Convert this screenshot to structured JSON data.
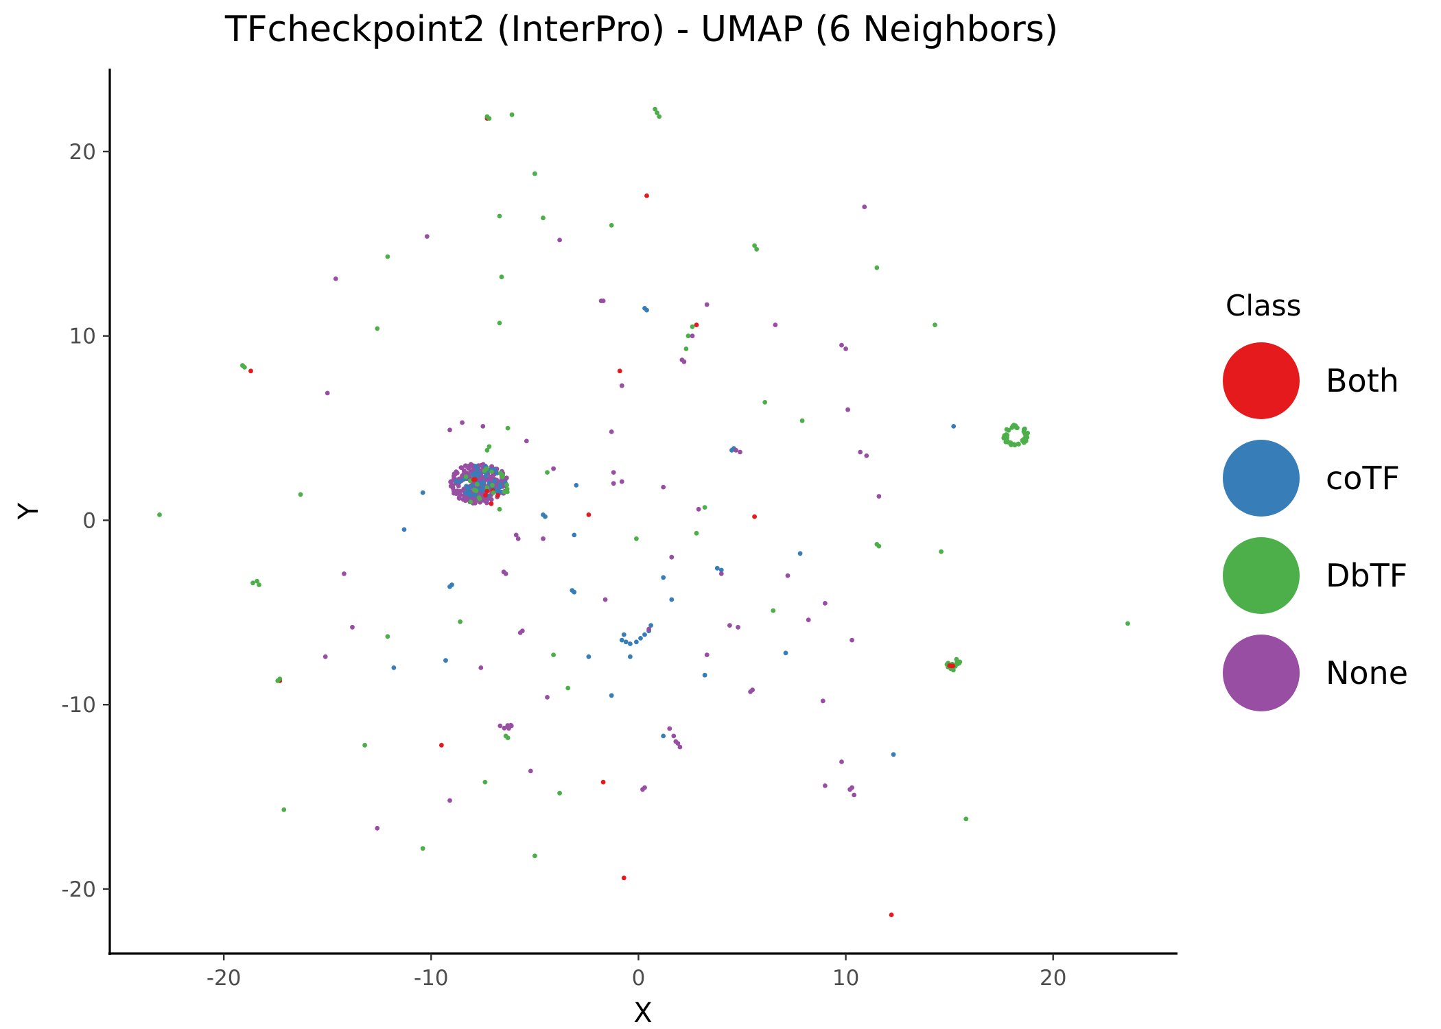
{
  "chart_data": {
    "type": "scatter",
    "title": "TFcheckpoint2 (InterPro) - UMAP (6 Neighbors)",
    "xlabel": "X",
    "ylabel": "Y",
    "xlim": [
      -25.5,
      26
    ],
    "ylim": [
      -23.5,
      24.5
    ],
    "xticks": [
      -20,
      -10,
      0,
      10,
      20
    ],
    "yticks": [
      -20,
      -10,
      0,
      10,
      20
    ],
    "grid": false,
    "legend": {
      "title": "Class",
      "placement": "right",
      "entries": [
        "Both",
        "coTF",
        "DbTF",
        "None"
      ]
    },
    "colors": {
      "Both": "#E41A1C",
      "coTF": "#377EB8",
      "DbTF": "#4DAF4A",
      "None": "#984EA3"
    },
    "clusters": [
      {
        "series": "None",
        "cx": -7.7,
        "cy": 2.0,
        "rx": 1.4,
        "ry": 1.1,
        "n": 260,
        "shape": "disc"
      },
      {
        "series": "coTF",
        "cx": -7.6,
        "cy": 2.1,
        "rx": 1.2,
        "ry": 0.9,
        "n": 45,
        "shape": "disc"
      },
      {
        "series": "DbTF",
        "cx": -7.3,
        "cy": 2.0,
        "rx": 1.2,
        "ry": 0.9,
        "n": 20,
        "shape": "disc"
      },
      {
        "series": "Both",
        "cx": -7.5,
        "cy": 1.8,
        "rx": 1.1,
        "ry": 0.8,
        "n": 6,
        "shape": "disc"
      },
      {
        "series": "DbTF",
        "cx": 18.2,
        "cy": 4.6,
        "rx": 0.55,
        "ry": 0.55,
        "n": 40,
        "shape": "ring"
      },
      {
        "series": "DbTF",
        "cx": 15.2,
        "cy": -7.8,
        "rx": 0.35,
        "ry": 0.35,
        "n": 18,
        "shape": "disc"
      },
      {
        "series": "Both",
        "cx": 15.1,
        "cy": -7.9,
        "rx": 0.2,
        "ry": 0.2,
        "n": 3,
        "shape": "disc"
      },
      {
        "series": "None",
        "cx": -6.4,
        "cy": -11.2,
        "rx": 0.35,
        "ry": 0.15,
        "n": 8,
        "shape": "disc"
      }
    ],
    "series": [
      {
        "name": "Both",
        "points": [
          [
            -7.3,
            21.8
          ],
          [
            0.4,
            17.6
          ],
          [
            -18.7,
            8.1
          ],
          [
            2.8,
            10.6
          ],
          [
            -0.9,
            8.1
          ],
          [
            -2.4,
            0.3
          ],
          [
            5.6,
            0.2
          ],
          [
            -9.5,
            -12.2
          ],
          [
            -1.7,
            -14.2
          ],
          [
            -0.7,
            -19.4
          ],
          [
            12.2,
            -21.4
          ],
          [
            -17.3,
            -8.7
          ],
          [
            -7.1,
            0.9
          ]
        ]
      },
      {
        "name": "coTF",
        "points": [
          [
            0.3,
            11.5
          ],
          [
            0.4,
            11.4
          ],
          [
            4.6,
            3.9
          ],
          [
            4.5,
            3.8
          ],
          [
            15.2,
            5.1
          ],
          [
            -10.4,
            1.5
          ],
          [
            -11.3,
            -0.5
          ],
          [
            -3,
            1.9
          ],
          [
            -4.6,
            0.3
          ],
          [
            -4.5,
            0.2
          ],
          [
            -3.1,
            -0.8
          ],
          [
            3.8,
            -2.6
          ],
          [
            4,
            -2.7
          ],
          [
            -3.2,
            -3.8
          ],
          [
            -3.1,
            -3.9
          ],
          [
            7.8,
            -1.8
          ],
          [
            1.2,
            -3.1
          ],
          [
            1.6,
            -4.3
          ],
          [
            -9,
            -3.5
          ],
          [
            -9.1,
            -3.6
          ],
          [
            0.6,
            -5.7
          ],
          [
            0.5,
            -6
          ],
          [
            0.3,
            -6.2
          ],
          [
            0.1,
            -6.4
          ],
          [
            -0.1,
            -6.6
          ],
          [
            -0.4,
            -6.7
          ],
          [
            -0.6,
            -6.6
          ],
          [
            -0.8,
            -6.5
          ],
          [
            -0.7,
            -6.2
          ],
          [
            -0.4,
            -7.4
          ],
          [
            -2.4,
            -7.4
          ],
          [
            -9.3,
            -7.6
          ],
          [
            -11.8,
            -8
          ],
          [
            7.1,
            -7.2
          ],
          [
            3.2,
            -8.4
          ],
          [
            -1.3,
            -9.5
          ],
          [
            1.2,
            -11.7
          ],
          [
            12.3,
            -12.7
          ]
        ]
      },
      {
        "name": "DbTF",
        "points": [
          [
            -7.3,
            21.9
          ],
          [
            -7.2,
            21.8
          ],
          [
            -6.1,
            22
          ],
          [
            0.8,
            22.3
          ],
          [
            0.9,
            22.1
          ],
          [
            1,
            21.9
          ],
          [
            -5,
            18.8
          ],
          [
            -4.6,
            16.4
          ],
          [
            -6.7,
            16.5
          ],
          [
            -1.3,
            16
          ],
          [
            5.6,
            14.9
          ],
          [
            5.7,
            14.7
          ],
          [
            -12.1,
            14.3
          ],
          [
            -6.6,
            13.2
          ],
          [
            11.5,
            13.7
          ],
          [
            -12.6,
            10.4
          ],
          [
            -6.7,
            10.7
          ],
          [
            14.3,
            10.6
          ],
          [
            2.6,
            10.5
          ],
          [
            2.3,
            9.3
          ],
          [
            2.4,
            10
          ],
          [
            -19.1,
            8.4
          ],
          [
            -19,
            8.3
          ],
          [
            6.1,
            6.4
          ],
          [
            7.9,
            5.4
          ],
          [
            -6.3,
            5
          ],
          [
            -7.2,
            4
          ],
          [
            -7.3,
            3.8
          ],
          [
            -16.3,
            1.4
          ],
          [
            -23.1,
            0.3
          ],
          [
            -4.4,
            2.6
          ],
          [
            3.2,
            0.7
          ],
          [
            -6.7,
            0.6
          ],
          [
            -0.1,
            -1
          ],
          [
            2.8,
            -0.7
          ],
          [
            11.5,
            -1.3
          ],
          [
            11.6,
            -1.4
          ],
          [
            14.6,
            -1.7
          ],
          [
            -18.4,
            -3.3
          ],
          [
            -18.6,
            -3.4
          ],
          [
            -18.3,
            -3.5
          ],
          [
            -8.6,
            -5.5
          ],
          [
            -17.3,
            -8.6
          ],
          [
            -17.4,
            -8.7
          ],
          [
            -12.1,
            -6.3
          ],
          [
            -4.1,
            -7.3
          ],
          [
            -3.4,
            -9.1
          ],
          [
            6.5,
            -4.9
          ],
          [
            -6.4,
            -11.7
          ],
          [
            -6.3,
            -11.8
          ],
          [
            -13.2,
            -12.2
          ],
          [
            -7.4,
            -14.2
          ],
          [
            -3.8,
            -14.8
          ],
          [
            -17.1,
            -15.7
          ],
          [
            -10.4,
            -17.8
          ],
          [
            -5,
            -18.2
          ],
          [
            15.8,
            -16.2
          ],
          [
            23.6,
            -5.6
          ],
          [
            -8.1,
            1
          ],
          [
            -7,
            1.5
          ]
        ]
      },
      {
        "name": "None",
        "points": [
          [
            -10.2,
            15.4
          ],
          [
            -3.8,
            15.2
          ],
          [
            -14.6,
            13.1
          ],
          [
            -1.8,
            11.9
          ],
          [
            -1.7,
            11.9
          ],
          [
            3.3,
            11.7
          ],
          [
            2.6,
            10
          ],
          [
            6.6,
            10.6
          ],
          [
            2.2,
            8.6
          ],
          [
            2.1,
            8.7
          ],
          [
            -0.8,
            7.3
          ],
          [
            9.8,
            9.5
          ],
          [
            10,
            9.3
          ],
          [
            10.9,
            17
          ],
          [
            -15,
            6.9
          ],
          [
            10.1,
            6
          ],
          [
            4.7,
            3.8
          ],
          [
            4.9,
            3.7
          ],
          [
            10.7,
            3.7
          ],
          [
            11,
            3.5
          ],
          [
            -9.1,
            4.9
          ],
          [
            -5.4,
            4.3
          ],
          [
            -1.3,
            4.8
          ],
          [
            -8.5,
            5.3
          ],
          [
            -7.5,
            5.1
          ],
          [
            -1.2,
            2.6
          ],
          [
            -1.2,
            2
          ],
          [
            -0.8,
            2.1
          ],
          [
            -4.1,
            2.8
          ],
          [
            1.2,
            1.8
          ],
          [
            11.6,
            1.3
          ],
          [
            2.9,
            0.6
          ],
          [
            -5.9,
            -0.8
          ],
          [
            -5.8,
            -1
          ],
          [
            -4.6,
            -1
          ],
          [
            1.6,
            -2
          ],
          [
            -6.5,
            -2.8
          ],
          [
            -6.4,
            -2.9
          ],
          [
            4,
            -2.9
          ],
          [
            7.2,
            -3
          ],
          [
            -14.2,
            -2.9
          ],
          [
            -1.6,
            -4.3
          ],
          [
            9,
            -4.5
          ],
          [
            4.4,
            -5.7
          ],
          [
            4.8,
            -5.8
          ],
          [
            -13.8,
            -5.8
          ],
          [
            8.2,
            -5.4
          ],
          [
            -5.7,
            -6.1
          ],
          [
            -5.6,
            -6
          ],
          [
            -15.1,
            -7.4
          ],
          [
            3.3,
            -7.3
          ],
          [
            10.3,
            -6.5
          ],
          [
            -7.6,
            -8
          ],
          [
            5.5,
            -9.2
          ],
          [
            5.4,
            -9.3
          ],
          [
            -4.4,
            -9.6
          ],
          [
            8.9,
            -9.8
          ],
          [
            1.5,
            -11.3
          ],
          [
            1.7,
            -11.7
          ],
          [
            1.9,
            -12.1
          ],
          [
            1.8,
            -12
          ],
          [
            2,
            -12.3
          ],
          [
            -5.2,
            -13.6
          ],
          [
            9.8,
            -13.1
          ],
          [
            9,
            -14.4
          ],
          [
            10.3,
            -14.5
          ],
          [
            10.4,
            -14.9
          ],
          [
            10.2,
            -14.6
          ],
          [
            0.3,
            -14.5
          ],
          [
            0.2,
            -14.6
          ],
          [
            -9.1,
            -15.2
          ],
          [
            -12.6,
            -16.7
          ],
          [
            0.5,
            -5.9
          ]
        ]
      }
    ]
  }
}
